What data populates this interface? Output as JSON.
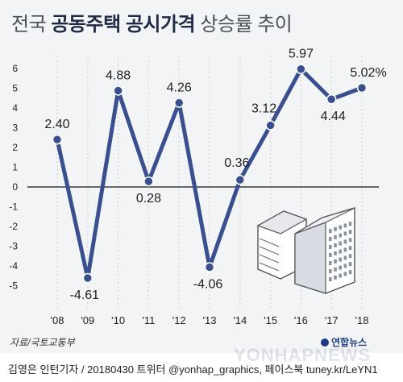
{
  "title": {
    "part1": "전국 ",
    "part2": "공동주택 공시가격",
    "part3": " 상승률 추이"
  },
  "source": "자료/국토교통부",
  "credit": "김영은 인턴기자 / 20180430  트위터 @yonhap_graphics, 페이스북 tuney.kr/LeYN1",
  "logo": "연합뉴스",
  "watermark": "YONHAPNEWS",
  "colors": {
    "line": "#3a4f8f",
    "grid": "#c9ced6",
    "zero": "#3a3a3a",
    "text": "#222222"
  },
  "chart_data": {
    "type": "line",
    "categories": [
      "'08",
      "'09",
      "'10",
      "'11",
      "'12",
      "'13",
      "'14",
      "'15",
      "'16",
      "'17",
      "'18"
    ],
    "values": [
      2.4,
      -4.61,
      4.88,
      0.28,
      4.26,
      -4.06,
      0.36,
      3.12,
      5.97,
      4.44,
      5.02
    ],
    "labels": [
      "2.40",
      "-4.61",
      "4.88",
      "0.28",
      "4.26",
      "-4.06",
      "0.36",
      "3.12",
      "5.97",
      "4.44",
      "5.02%"
    ],
    "y_ticks": [
      "6",
      "5",
      "4",
      "3",
      "2",
      "1",
      "0",
      "-1",
      "-2",
      "-3",
      "-4",
      "-5"
    ],
    "y_tick_values": [
      6,
      5,
      4,
      3,
      2,
      1,
      0,
      -1,
      -2,
      -3,
      -4,
      -5
    ],
    "ylim": [
      -5.5,
      6.5
    ],
    "grid": "vertical dashed",
    "title": "",
    "xlabel": "",
    "ylabel": ""
  }
}
